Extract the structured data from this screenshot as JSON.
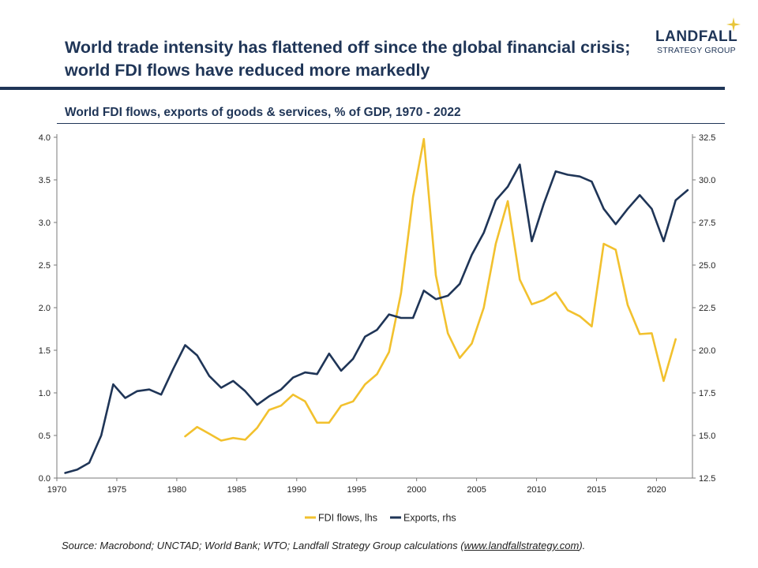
{
  "header": {
    "headline_line1": "World trade intensity has flattened off since the global financial crisis;",
    "headline_line2": "world FDI flows have reduced more markedly"
  },
  "logo": {
    "main": "LANDFALL",
    "sub": "STRATEGY GROUP",
    "accent_color": "#e8c53a"
  },
  "source": {
    "prefix": "Source: Macrobond; UNCTAD; World Bank; WTO; Landfall Strategy Group calculations (",
    "link": "www.landfallstrategy.com",
    "suffix": ")."
  },
  "chart_data": {
    "type": "line",
    "title": "World FDI flows, exports of goods & services, % of GDP, 1970 - 2022",
    "xlim": [
      1970,
      2023
    ],
    "x_ticks": [
      "1970",
      "1975",
      "1980",
      "1985",
      "1990",
      "1995",
      "2000",
      "2005",
      "2010",
      "2015",
      "2020"
    ],
    "y_left": {
      "lim": [
        0,
        4
      ],
      "ticks": [
        "0.0",
        "0.5",
        "1.0",
        "1.5",
        "2.0",
        "2.5",
        "3.0",
        "3.5",
        "4.0"
      ]
    },
    "y_right": {
      "lim": [
        12.5,
        32.5
      ],
      "ticks": [
        "12.5",
        "15.0",
        "17.5",
        "20.0",
        "22.5",
        "25.0",
        "27.5",
        "30.0",
        "32.5"
      ]
    },
    "grid": false,
    "legend_position": "bottom",
    "series": [
      {
        "name": "FDI flows, lhs",
        "axis": "left",
        "color": "#f2c12e",
        "x": [
          1980.7,
          1981.7,
          1982.7,
          1983.7,
          1984.7,
          1985.7,
          1986.7,
          1987.7,
          1988.7,
          1989.7,
          1990.7,
          1991.7,
          1992.7,
          1993.7,
          1994.7,
          1995.7,
          1996.7,
          1997.7,
          1998.7,
          1999.7,
          2000.6,
          2001.6,
          2002.6,
          2003.6,
          2004.6,
          2005.6,
          2006.6,
          2007.6,
          2008.6,
          2009.6,
          2010.6,
          2011.6,
          2012.6,
          2013.6,
          2014.6,
          2015.6,
          2016.6,
          2017.6,
          2018.6,
          2019.6,
          2020.6,
          2021.6
        ],
        "values": [
          0.49,
          0.6,
          0.52,
          0.44,
          0.47,
          0.45,
          0.59,
          0.8,
          0.85,
          0.98,
          0.9,
          0.65,
          0.65,
          0.85,
          0.9,
          1.1,
          1.22,
          1.48,
          2.17,
          3.3,
          3.98,
          2.38,
          1.7,
          1.41,
          1.58,
          2.0,
          2.75,
          3.25,
          2.33,
          2.04,
          2.09,
          2.18,
          1.97,
          1.9,
          1.78,
          2.75,
          2.68,
          2.03,
          1.69,
          1.7,
          1.14,
          1.63
        ]
      },
      {
        "name": "Exports, rhs",
        "axis": "right",
        "color": "#1f3557",
        "x": [
          1970.7,
          1971.7,
          1972.7,
          1973.7,
          1974.7,
          1975.7,
          1976.7,
          1977.7,
          1978.7,
          1979.7,
          1980.7,
          1981.7,
          1982.7,
          1983.7,
          1984.7,
          1985.7,
          1986.7,
          1987.7,
          1988.7,
          1989.7,
          1990.7,
          1991.7,
          1992.7,
          1993.7,
          1994.7,
          1995.7,
          1996.7,
          1997.7,
          1998.7,
          1999.7,
          2000.6,
          2001.6,
          2002.6,
          2003.6,
          2004.6,
          2005.6,
          2006.6,
          2007.6,
          2008.6,
          2009.6,
          2010.6,
          2011.6,
          2012.6,
          2013.6,
          2014.6,
          2015.6,
          2016.6,
          2017.6,
          2018.6,
          2019.6,
          2020.6,
          2021.6,
          2022.6
        ],
        "values": [
          12.8,
          13.0,
          13.4,
          15.0,
          18.0,
          17.2,
          17.6,
          17.7,
          17.4,
          18.9,
          20.3,
          19.7,
          18.5,
          17.8,
          18.2,
          17.6,
          16.8,
          17.3,
          17.7,
          18.4,
          18.7,
          18.6,
          19.8,
          18.8,
          19.5,
          20.8,
          21.2,
          22.1,
          21.9,
          21.9,
          23.5,
          23.0,
          23.2,
          23.9,
          25.6,
          26.9,
          28.8,
          29.6,
          30.9,
          26.4,
          28.6,
          30.5,
          30.3,
          30.2,
          29.9,
          28.3,
          27.4,
          28.3,
          29.1,
          28.3,
          26.4,
          28.8,
          29.4
        ]
      }
    ]
  }
}
